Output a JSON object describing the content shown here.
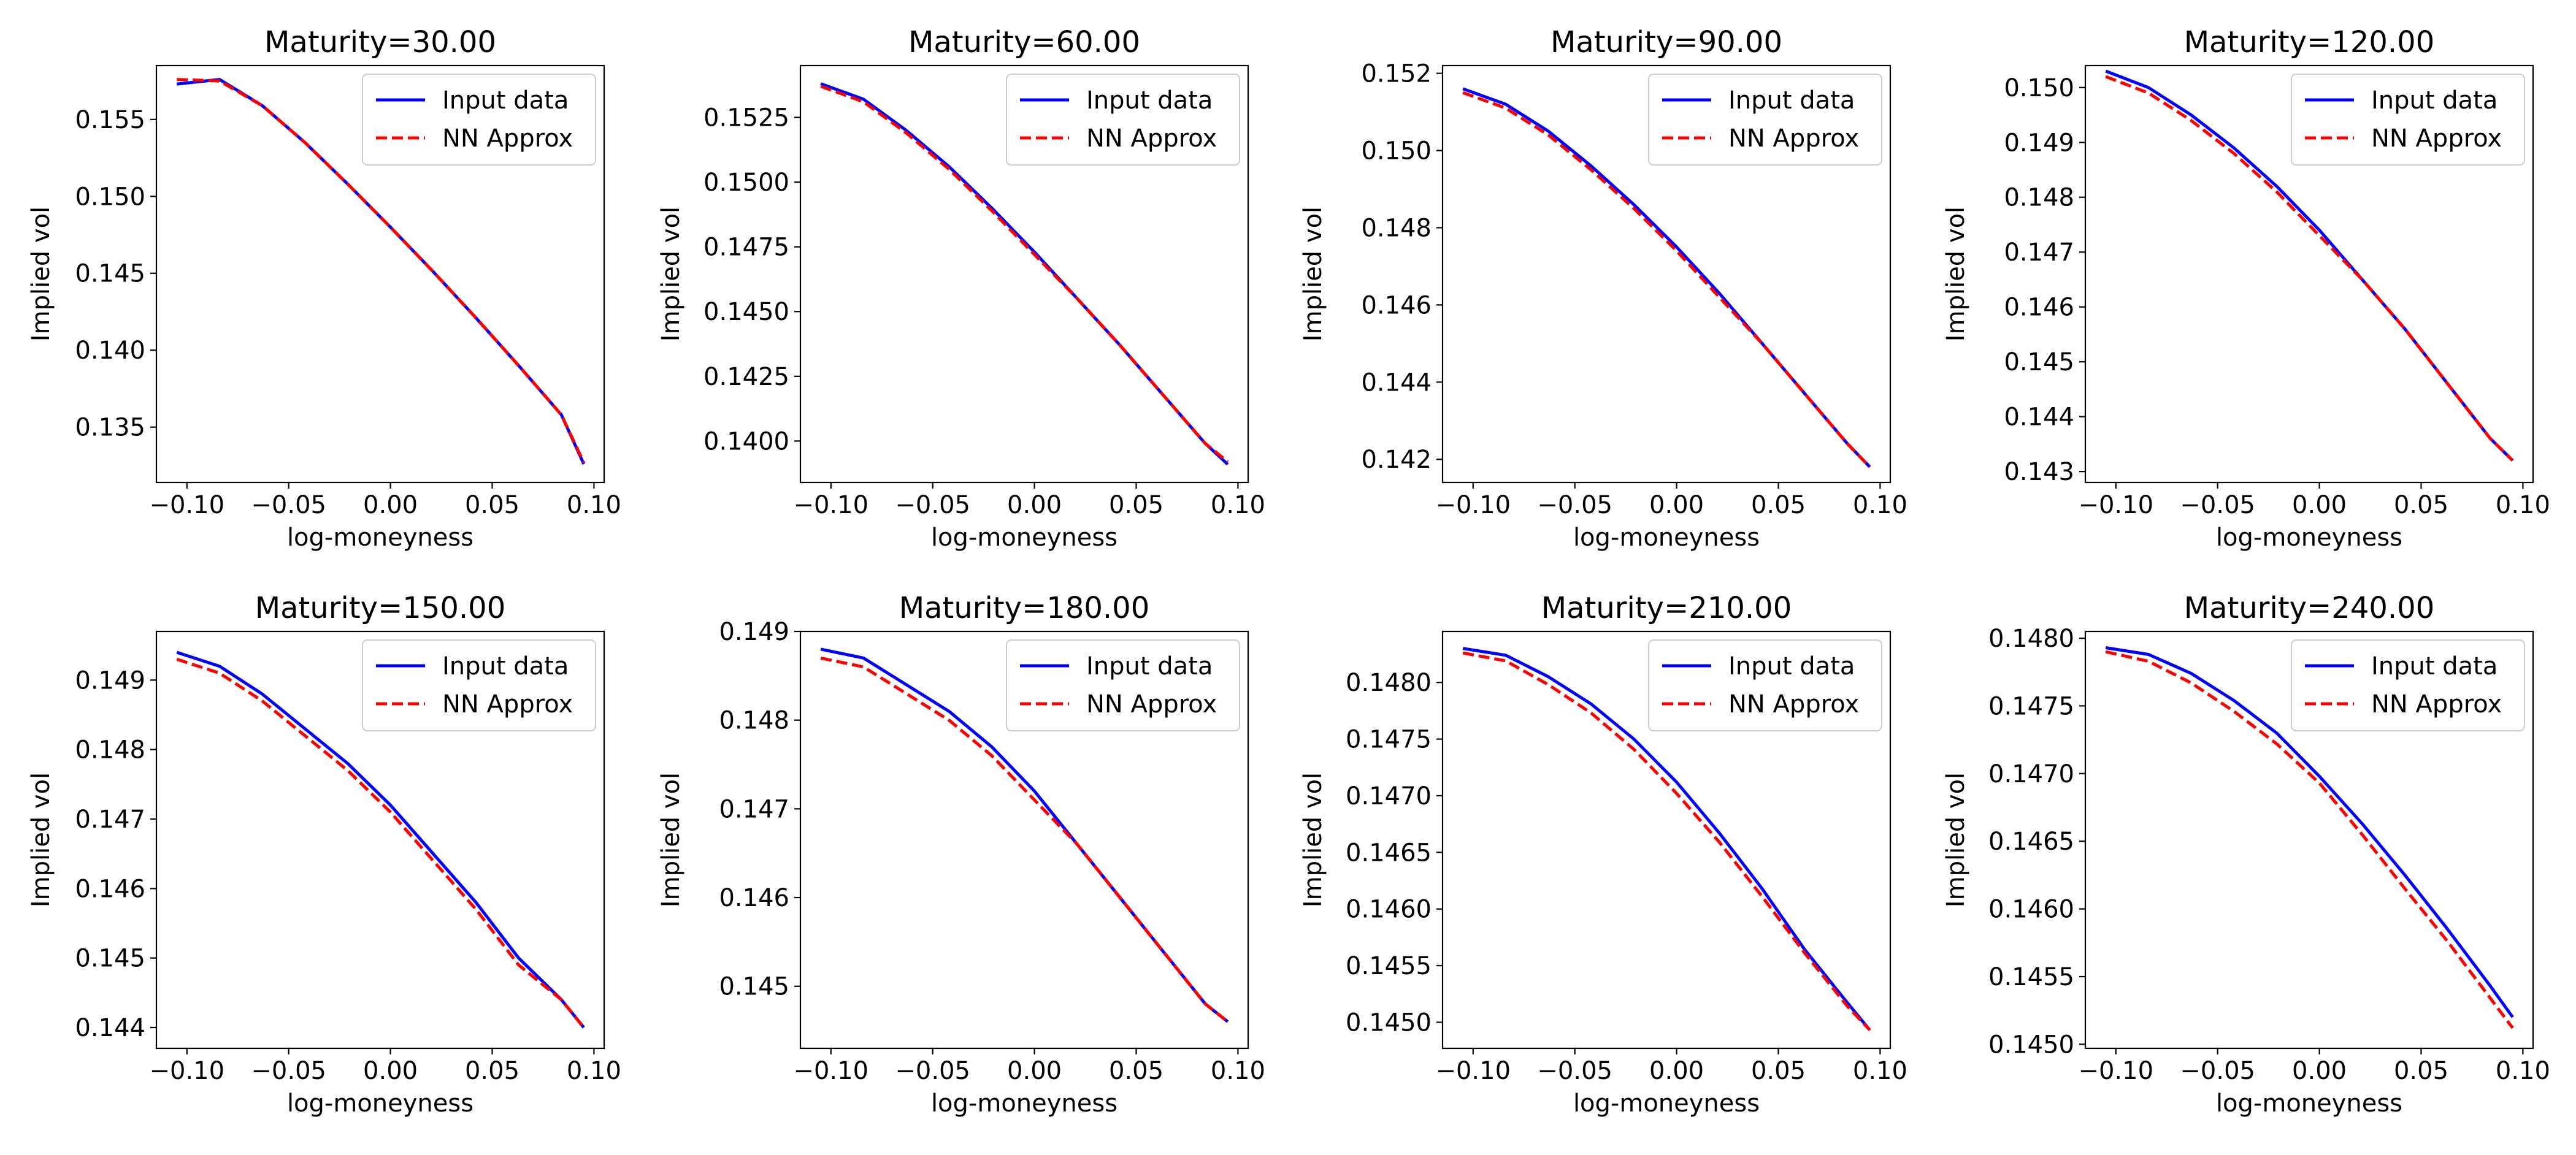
{
  "chart_data": [
    {
      "type": "line",
      "title": "Maturity=30.00",
      "xlabel": "log-moneyness",
      "ylabel": "Implied vol",
      "xlim": [
        -0.115,
        0.105
      ],
      "ylim": [
        0.1314,
        0.1585
      ],
      "xticks": [
        -0.1,
        -0.05,
        0.0,
        0.05,
        0.1
      ],
      "xtick_labels": [
        "−0.10",
        "−0.05",
        "0.00",
        "0.05",
        "0.10"
      ],
      "yticks": [
        0.135,
        0.14,
        0.145,
        0.15,
        0.155
      ],
      "ytick_labels": [
        "0.135",
        "0.140",
        "0.145",
        "0.150",
        "0.155"
      ],
      "legend_position": "upper-right",
      "x": [
        -0.105,
        -0.084,
        -0.063,
        -0.042,
        -0.021,
        0.0,
        0.021,
        0.042,
        0.063,
        0.084,
        0.095
      ],
      "series": [
        {
          "name": "Input data",
          "color": "#0000ff",
          "style": "solid",
          "values": [
            0.1573,
            0.1576,
            0.1559,
            0.1535,
            0.1508,
            0.148,
            0.1451,
            0.1421,
            0.139,
            0.1358,
            0.1326
          ]
        },
        {
          "name": "NN Approx",
          "color": "#ff0000",
          "style": "dashed",
          "values": [
            0.1576,
            0.1575,
            0.1559,
            0.1535,
            0.1508,
            0.148,
            0.1451,
            0.1421,
            0.139,
            0.1358,
            0.1327
          ]
        }
      ]
    },
    {
      "type": "line",
      "title": "Maturity=60.00",
      "xlabel": "log-moneyness",
      "ylabel": "Implied vol",
      "xlim": [
        -0.115,
        0.105
      ],
      "ylim": [
        0.1384,
        0.1545
      ],
      "xticks": [
        -0.1,
        -0.05,
        0.0,
        0.05,
        0.1
      ],
      "xtick_labels": [
        "−0.10",
        "−0.05",
        "0.00",
        "0.05",
        "0.10"
      ],
      "yticks": [
        0.14,
        0.1425,
        0.145,
        0.1475,
        0.15,
        0.1525
      ],
      "ytick_labels": [
        "0.1400",
        "0.1425",
        "0.1450",
        "0.1475",
        "0.1500",
        "0.1525"
      ],
      "legend_position": "upper-right",
      "x": [
        -0.105,
        -0.084,
        -0.063,
        -0.042,
        -0.021,
        0.0,
        0.021,
        0.042,
        0.063,
        0.084,
        0.095
      ],
      "series": [
        {
          "name": "Input data",
          "color": "#0000ff",
          "style": "solid",
          "values": [
            0.1538,
            0.1532,
            0.152,
            0.1506,
            0.149,
            0.1473,
            0.1455,
            0.1437,
            0.1418,
            0.1399,
            0.1391
          ]
        },
        {
          "name": "NN Approx",
          "color": "#ff0000",
          "style": "dashed",
          "values": [
            0.1537,
            0.1531,
            0.1519,
            0.1505,
            0.1489,
            0.1472,
            0.1455,
            0.1437,
            0.1418,
            0.1399,
            0.1392
          ]
        }
      ]
    },
    {
      "type": "line",
      "title": "Maturity=90.00",
      "xlabel": "log-moneyness",
      "ylabel": "Implied vol",
      "xlim": [
        -0.115,
        0.105
      ],
      "ylim": [
        0.1414,
        0.1522
      ],
      "xticks": [
        -0.1,
        -0.05,
        0.0,
        0.05,
        0.1
      ],
      "xtick_labels": [
        "−0.10",
        "−0.05",
        "0.00",
        "0.05",
        "0.10"
      ],
      "yticks": [
        0.142,
        0.144,
        0.146,
        0.148,
        0.15,
        0.152
      ],
      "ytick_labels": [
        "0.142",
        "0.144",
        "0.146",
        "0.148",
        "0.150",
        "0.152"
      ],
      "legend_position": "upper-right",
      "x": [
        -0.105,
        -0.084,
        -0.063,
        -0.042,
        -0.021,
        0.0,
        0.021,
        0.042,
        0.063,
        0.084,
        0.095
      ],
      "series": [
        {
          "name": "Input data",
          "color": "#0000ff",
          "style": "solid",
          "values": [
            0.1516,
            0.1512,
            0.1505,
            0.1496,
            0.1486,
            0.1475,
            0.1463,
            0.145,
            0.1437,
            0.1424,
            0.1418
          ]
        },
        {
          "name": "NN Approx",
          "color": "#ff0000",
          "style": "dashed",
          "values": [
            0.1515,
            0.1511,
            0.1504,
            0.1495,
            0.1485,
            0.1474,
            0.1462,
            0.145,
            0.1437,
            0.1424,
            0.1418
          ]
        }
      ]
    },
    {
      "type": "line",
      "title": "Maturity=120.00",
      "xlabel": "log-moneyness",
      "ylabel": "Implied vol",
      "xlim": [
        -0.115,
        0.105
      ],
      "ylim": [
        0.1428,
        0.1504
      ],
      "xticks": [
        -0.1,
        -0.05,
        0.0,
        0.05,
        0.1
      ],
      "xtick_labels": [
        "−0.10",
        "−0.05",
        "0.00",
        "0.05",
        "0.10"
      ],
      "yticks": [
        0.143,
        0.144,
        0.145,
        0.146,
        0.147,
        0.148,
        0.149,
        0.15
      ],
      "ytick_labels": [
        "0.143",
        "0.144",
        "0.145",
        "0.146",
        "0.147",
        "0.148",
        "0.149",
        "0.150"
      ],
      "legend_position": "upper-right",
      "x": [
        -0.105,
        -0.084,
        -0.063,
        -0.042,
        -0.021,
        0.0,
        0.021,
        0.042,
        0.063,
        0.084,
        0.095
      ],
      "series": [
        {
          "name": "Input data",
          "color": "#0000ff",
          "style": "solid",
          "values": [
            0.1503,
            0.15,
            0.1495,
            0.1489,
            0.1482,
            0.1474,
            0.1465,
            0.1456,
            0.1446,
            0.1436,
            0.1432
          ]
        },
        {
          "name": "NN Approx",
          "color": "#ff0000",
          "style": "dashed",
          "values": [
            0.1502,
            0.1499,
            0.1494,
            0.1488,
            0.1481,
            0.1473,
            0.1465,
            0.1456,
            0.1446,
            0.1436,
            0.1432
          ]
        }
      ]
    },
    {
      "type": "line",
      "title": "Maturity=150.00",
      "xlabel": "log-moneyness",
      "ylabel": "Implied vol",
      "xlim": [
        -0.115,
        0.105
      ],
      "ylim": [
        0.1437,
        0.1497
      ],
      "xticks": [
        -0.1,
        -0.05,
        0.0,
        0.05,
        0.1
      ],
      "xtick_labels": [
        "−0.10",
        "−0.05",
        "0.00",
        "0.05",
        "0.10"
      ],
      "yticks": [
        0.144,
        0.145,
        0.146,
        0.147,
        0.148,
        0.149
      ],
      "ytick_labels": [
        "0.144",
        "0.145",
        "0.146",
        "0.147",
        "0.148",
        "0.149"
      ],
      "legend_position": "upper-right",
      "x": [
        -0.105,
        -0.084,
        -0.063,
        -0.042,
        -0.021,
        0.0,
        0.021,
        0.042,
        0.063,
        0.084,
        0.095
      ],
      "series": [
        {
          "name": "Input data",
          "color": "#0000ff",
          "style": "solid",
          "values": [
            0.1494,
            0.1492,
            0.1488,
            0.1483,
            0.1478,
            0.1472,
            0.1465,
            0.1458,
            0.145,
            0.1444,
            0.144
          ]
        },
        {
          "name": "NN Approx",
          "color": "#ff0000",
          "style": "dashed",
          "values": [
            0.1493,
            0.1491,
            0.1487,
            0.1482,
            0.1477,
            0.1471,
            0.1464,
            0.1457,
            0.1449,
            0.1444,
            0.144
          ]
        }
      ]
    },
    {
      "type": "line",
      "title": "Maturity=180.00",
      "xlabel": "log-moneyness",
      "ylabel": "Implied vol",
      "xlim": [
        -0.115,
        0.105
      ],
      "ylim": [
        0.1443,
        0.149
      ],
      "xticks": [
        -0.1,
        -0.05,
        0.0,
        0.05,
        0.1
      ],
      "xtick_labels": [
        "−0.10",
        "−0.05",
        "0.00",
        "0.05",
        "0.10"
      ],
      "yticks": [
        0.145,
        0.146,
        0.147,
        0.148,
        0.149
      ],
      "ytick_labels": [
        "0.145",
        "0.146",
        "0.147",
        "0.148",
        "0.149"
      ],
      "legend_position": "upper-right",
      "x": [
        -0.105,
        -0.084,
        -0.063,
        -0.042,
        -0.021,
        0.0,
        0.021,
        0.042,
        0.063,
        0.084,
        0.095
      ],
      "series": [
        {
          "name": "Input data",
          "color": "#0000ff",
          "style": "solid",
          "values": [
            0.1488,
            0.1487,
            0.1484,
            0.1481,
            0.1477,
            0.1472,
            0.1466,
            0.146,
            0.1454,
            0.1448,
            0.1446
          ]
        },
        {
          "name": "NN Approx",
          "color": "#ff0000",
          "style": "dashed",
          "values": [
            0.1487,
            0.1486,
            0.1483,
            0.148,
            0.1476,
            0.1471,
            0.1466,
            0.146,
            0.1454,
            0.1448,
            0.1446
          ]
        }
      ]
    },
    {
      "type": "line",
      "title": "Maturity=210.00",
      "xlabel": "log-moneyness",
      "ylabel": "Implied vol",
      "xlim": [
        -0.115,
        0.105
      ],
      "ylim": [
        0.14477,
        0.14845
      ],
      "xticks": [
        -0.1,
        -0.05,
        0.0,
        0.05,
        0.1
      ],
      "xtick_labels": [
        "−0.10",
        "−0.05",
        "0.00",
        "0.05",
        "0.10"
      ],
      "yticks": [
        0.145,
        0.1455,
        0.146,
        0.1465,
        0.147,
        0.1475,
        0.148
      ],
      "ytick_labels": [
        "0.1450",
        "0.1455",
        "0.1460",
        "0.1465",
        "0.1470",
        "0.1475",
        "0.1480"
      ],
      "legend_position": "upper-right",
      "x": [
        -0.105,
        -0.084,
        -0.063,
        -0.042,
        -0.021,
        0.0,
        0.021,
        0.042,
        0.063,
        0.084,
        0.095
      ],
      "series": [
        {
          "name": "Input data",
          "color": "#0000ff",
          "style": "solid",
          "values": [
            0.1483,
            0.14824,
            0.14805,
            0.14781,
            0.1475,
            0.14712,
            0.14667,
            0.14618,
            0.14564,
            0.14517,
            0.14493
          ]
        },
        {
          "name": "NN Approx",
          "color": "#ff0000",
          "style": "dashed",
          "values": [
            0.14826,
            0.14819,
            0.14798,
            0.14773,
            0.14741,
            0.14702,
            0.14659,
            0.14611,
            0.14561,
            0.14514,
            0.14493
          ]
        }
      ]
    },
    {
      "type": "line",
      "title": "Maturity=240.00",
      "xlabel": "log-moneyness",
      "ylabel": "Implied vol",
      "xlim": [
        -0.115,
        0.105
      ],
      "ylim": [
        0.14497,
        0.14805
      ],
      "xticks": [
        -0.1,
        -0.05,
        0.0,
        0.05,
        0.1
      ],
      "xtick_labels": [
        "−0.10",
        "−0.05",
        "0.00",
        "0.05",
        "0.10"
      ],
      "yticks": [
        0.145,
        0.1455,
        0.146,
        0.1465,
        0.147,
        0.1475,
        0.148
      ],
      "ytick_labels": [
        "0.1450",
        "0.1455",
        "0.1460",
        "0.1465",
        "0.1470",
        "0.1475",
        "0.1480"
      ],
      "legend_position": "upper-right",
      "x": [
        -0.105,
        -0.084,
        -0.063,
        -0.042,
        -0.021,
        0.0,
        0.021,
        0.042,
        0.063,
        0.084,
        0.095
      ],
      "series": [
        {
          "name": "Input data",
          "color": "#0000ff",
          "style": "solid",
          "values": [
            0.14793,
            0.14788,
            0.14774,
            0.14754,
            0.1473,
            0.14698,
            0.14663,
            0.14625,
            0.14585,
            0.14543,
            0.1452
          ]
        },
        {
          "name": "NN Approx",
          "color": "#ff0000",
          "style": "dashed",
          "values": [
            0.1479,
            0.14783,
            0.14767,
            0.14746,
            0.14722,
            0.14693,
            0.14655,
            0.14615,
            0.14576,
            0.14534,
            0.14512
          ]
        }
      ]
    }
  ]
}
